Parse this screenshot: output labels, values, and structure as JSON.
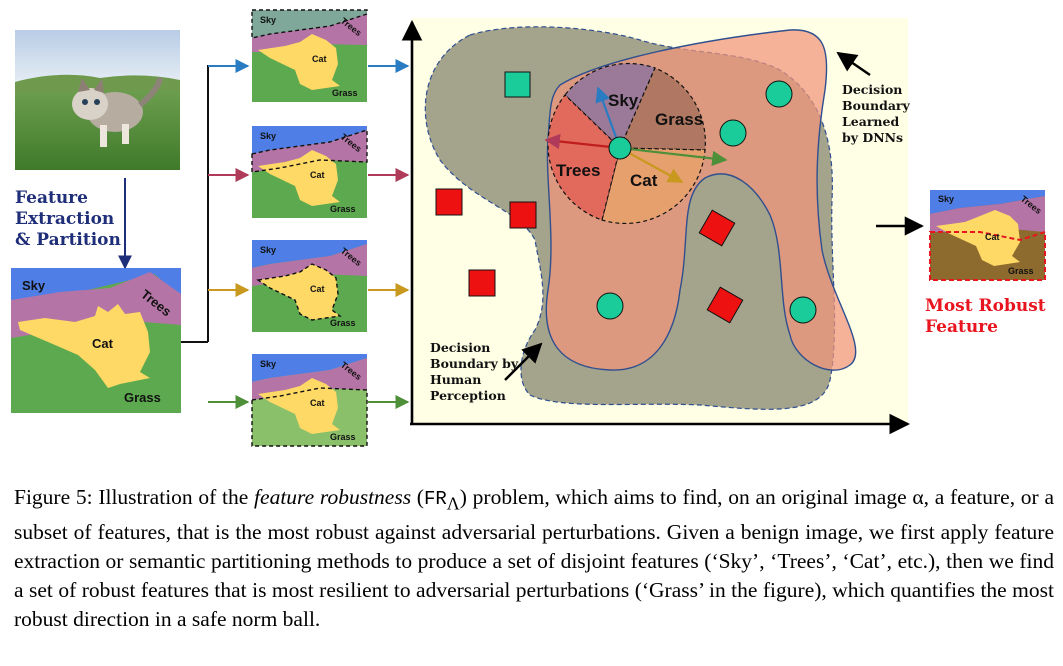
{
  "left_label": {
    "line1": "Feature",
    "line2": "Extraction",
    "line3": "& Partition"
  },
  "partition_labels": {
    "sky": "Sky",
    "trees": "Trees",
    "cat": "Cat",
    "grass": "Grass"
  },
  "region_labels": {
    "sky": "Sky",
    "grass": "Grass",
    "trees": "Trees",
    "cat": "Cat"
  },
  "dnn_note": {
    "line1": "Decision",
    "line2": "Boundary",
    "line3": "Learned",
    "line4": "by DNNs"
  },
  "human_note": {
    "line1": "Decision",
    "line2": "Boundary by",
    "line3": "Human",
    "line4": "Perception"
  },
  "result_label": {
    "line1": "Most Robust",
    "line2": "Feature"
  },
  "colors": {
    "sky": "#4f7ee6",
    "trees": "#b574a6",
    "cat": "#ffd966",
    "grass": "#5da94f",
    "panel_bg": "#ffffe6",
    "human_region": "#a4a48c",
    "dnn_region": "#f1947a",
    "circle_class": "#19cc99",
    "square_class": "#ee1111",
    "arrow_blue": "#2a7cc2",
    "arrow_red": "#b03a5a",
    "arrow_gold": "#c9981e",
    "arrow_green": "#4e8f3a"
  },
  "caption": {
    "p1": "Figure 5: Illustration of the ",
    "p2": "feature robustness",
    "p3": " (",
    "p4": "FR",
    "p5": "Λ",
    "p6": ") problem, which aims to find, on an original image α, a feature, or a subset of features, that is the most robust against adversarial perturbations. Given a benign image, we first apply feature extraction or semantic partitioning methods to produce a set of disjoint features (‘Sky’, ‘Trees’, ‘Cat’, etc.), then we find a set of robust features that is most resilient to adversarial perturbations (‘Grass’ in the figure), which quantifies the most robust direction in a safe norm ball."
  }
}
